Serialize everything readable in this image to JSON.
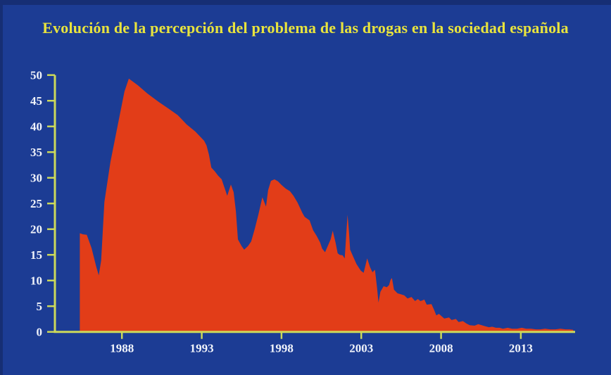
{
  "colors": {
    "background": "#1c3c94",
    "frame_edge": "#162e74",
    "area": "#e23d18",
    "title_text": "#e9e43d",
    "axis": "#ccd95a",
    "tick_text": "#f0f3fa"
  },
  "chart_data": {
    "type": "area",
    "title": "Evolución de la percepción del problema de las drogas en la sociedad española",
    "xlabel": "",
    "ylabel": "",
    "xlim": [
      1983.8,
      2016.4
    ],
    "ylim": [
      0,
      50
    ],
    "xticks": [
      1988,
      1993,
      1998,
      2003,
      2008,
      2013
    ],
    "yticks": [
      0,
      5,
      10,
      15,
      20,
      25,
      30,
      35,
      40,
      45,
      50
    ],
    "grid": false,
    "legend": false,
    "points": [
      [
        1985.36,
        19.2
      ],
      [
        1985.55,
        19.0
      ],
      [
        1985.8,
        18.9
      ],
      [
        1986.1,
        16.3
      ],
      [
        1986.4,
        12.6
      ],
      [
        1986.55,
        11.0
      ],
      [
        1986.7,
        13.9
      ],
      [
        1986.9,
        25.3
      ],
      [
        1987.28,
        33.1
      ],
      [
        1987.72,
        40.0
      ],
      [
        1988.16,
        46.8
      ],
      [
        1988.43,
        49.3
      ],
      [
        1989.0,
        48.0
      ],
      [
        1989.6,
        46.4
      ],
      [
        1990.3,
        44.8
      ],
      [
        1990.95,
        43.4
      ],
      [
        1991.5,
        42.2
      ],
      [
        1992.05,
        40.4
      ],
      [
        1992.6,
        39.0
      ],
      [
        1993.15,
        37.2
      ],
      [
        1993.3,
        36.3
      ],
      [
        1993.45,
        34.5
      ],
      [
        1993.6,
        32.0
      ],
      [
        1993.81,
        31.3
      ],
      [
        1994.03,
        30.4
      ],
      [
        1994.25,
        29.7
      ],
      [
        1994.48,
        27.6
      ],
      [
        1994.6,
        26.5
      ],
      [
        1994.83,
        28.7
      ],
      [
        1995.0,
        27.2
      ],
      [
        1995.14,
        23.5
      ],
      [
        1995.27,
        18.0
      ],
      [
        1995.5,
        16.7
      ],
      [
        1995.66,
        16.0
      ],
      [
        1995.9,
        16.7
      ],
      [
        1996.1,
        17.6
      ],
      [
        1996.33,
        20.1
      ],
      [
        1996.55,
        22.8
      ],
      [
        1996.8,
        26.2
      ],
      [
        1997.03,
        24.4
      ],
      [
        1997.16,
        27.6
      ],
      [
        1997.34,
        29.4
      ],
      [
        1997.56,
        29.7
      ],
      [
        1997.78,
        29.3
      ],
      [
        1998.0,
        28.6
      ],
      [
        1998.26,
        27.9
      ],
      [
        1998.53,
        27.4
      ],
      [
        1998.75,
        26.5
      ],
      [
        1999.0,
        25.2
      ],
      [
        1999.32,
        23.1
      ],
      [
        1999.45,
        22.4
      ],
      [
        1999.76,
        21.7
      ],
      [
        1999.98,
        19.8
      ],
      [
        2000.2,
        18.7
      ],
      [
        2000.42,
        17.4
      ],
      [
        2000.55,
        16.2
      ],
      [
        2000.73,
        15.5
      ],
      [
        2000.9,
        16.7
      ],
      [
        2001.08,
        18.0
      ],
      [
        2001.21,
        19.7
      ],
      [
        2001.39,
        17.4
      ],
      [
        2001.52,
        15.3
      ],
      [
        2001.65,
        15.0
      ],
      [
        2001.83,
        14.9
      ],
      [
        2001.96,
        14.3
      ],
      [
        2002.14,
        22.8
      ],
      [
        2002.23,
        19.4
      ],
      [
        2002.3,
        16.0
      ],
      [
        2002.5,
        14.6
      ],
      [
        2002.7,
        13.2
      ],
      [
        2002.97,
        11.9
      ],
      [
        2003.15,
        11.5
      ],
      [
        2003.37,
        14.3
      ],
      [
        2003.55,
        12.6
      ],
      [
        2003.7,
        11.6
      ],
      [
        2003.86,
        12.1
      ],
      [
        2003.99,
        8.5
      ],
      [
        2004.08,
        5.7
      ],
      [
        2004.2,
        7.8
      ],
      [
        2004.4,
        8.9
      ],
      [
        2004.6,
        8.7
      ],
      [
        2004.74,
        9.1
      ],
      [
        2004.83,
        10.1
      ],
      [
        2004.92,
        10.5
      ],
      [
        2005.05,
        8.2
      ],
      [
        2005.27,
        7.5
      ],
      [
        2005.5,
        7.3
      ],
      [
        2005.7,
        7.1
      ],
      [
        2005.9,
        6.5
      ],
      [
        2006.15,
        6.8
      ],
      [
        2006.37,
        6.0
      ],
      [
        2006.55,
        6.4
      ],
      [
        2006.7,
        6.0
      ],
      [
        2006.8,
        6.1
      ],
      [
        2006.95,
        6.3
      ],
      [
        2007.1,
        5.3
      ],
      [
        2007.4,
        5.4
      ],
      [
        2007.56,
        4.3
      ],
      [
        2007.7,
        3.2
      ],
      [
        2007.87,
        3.5
      ],
      [
        2008.05,
        3.0
      ],
      [
        2008.2,
        2.6
      ],
      [
        2008.5,
        2.8
      ],
      [
        2008.66,
        2.3
      ],
      [
        2008.93,
        2.5
      ],
      [
        2009.1,
        1.9
      ],
      [
        2009.37,
        2.1
      ],
      [
        2009.6,
        1.6
      ],
      [
        2009.8,
        1.3
      ],
      [
        2010.1,
        1.2
      ],
      [
        2010.33,
        1.5
      ],
      [
        2010.55,
        1.3
      ],
      [
        2010.77,
        1.1
      ],
      [
        2011.0,
        0.9
      ],
      [
        2011.2,
        1.0
      ],
      [
        2011.44,
        0.8
      ],
      [
        2011.66,
        0.8
      ],
      [
        2011.88,
        0.6
      ],
      [
        2012.18,
        0.8
      ],
      [
        2012.45,
        0.6
      ],
      [
        2012.76,
        0.6
      ],
      [
        2013.06,
        0.8
      ],
      [
        2013.33,
        0.6
      ],
      [
        2013.64,
        0.6
      ],
      [
        2013.94,
        0.5
      ],
      [
        2014.21,
        0.5
      ],
      [
        2014.52,
        0.6
      ],
      [
        2014.83,
        0.5
      ],
      [
        2015.18,
        0.5
      ],
      [
        2015.48,
        0.6
      ],
      [
        2015.8,
        0.5
      ],
      [
        2016.06,
        0.5
      ],
      [
        2016.28,
        0.4
      ]
    ]
  }
}
